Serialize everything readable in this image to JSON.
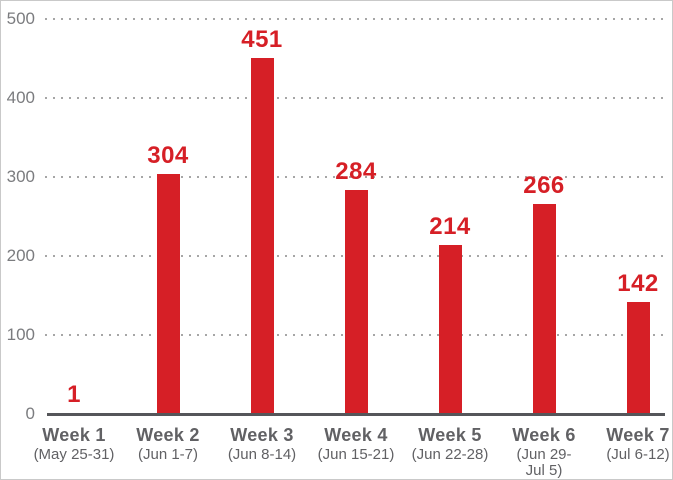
{
  "chart_data": {
    "type": "bar",
    "categories": [
      {
        "label": "Week 1",
        "date": "(May 25-31)"
      },
      {
        "label": "Week 2",
        "date": "(Jun 1-7)"
      },
      {
        "label": "Week 3",
        "date": "(Jun 8-14)"
      },
      {
        "label": "Week 4",
        "date": "(Jun 15-21)"
      },
      {
        "label": "Week 5",
        "date": "(Jun 22-28)"
      },
      {
        "label": "Week 6",
        "date": "(Jun 29-\nJul 5)"
      },
      {
        "label": "Week 7",
        "date": "(Jul 6-12)"
      }
    ],
    "values": [
      1,
      304,
      451,
      284,
      214,
      266,
      142
    ],
    "yticks": [
      0,
      100,
      200,
      300,
      400,
      500
    ],
    "ylim": [
      0,
      500
    ],
    "grid": "dotted-horizontal",
    "legend": "none",
    "colors": {
      "bar": "#D61F26",
      "value_label": "#D61F26",
      "axis_line": "#55565A",
      "y_tick_label": "#7B7C7F",
      "category_label": "#616164",
      "gridline_dot": "#A6A6A6",
      "frame_border": "#C9C9C9",
      "background": "#FFFFFF"
    }
  }
}
